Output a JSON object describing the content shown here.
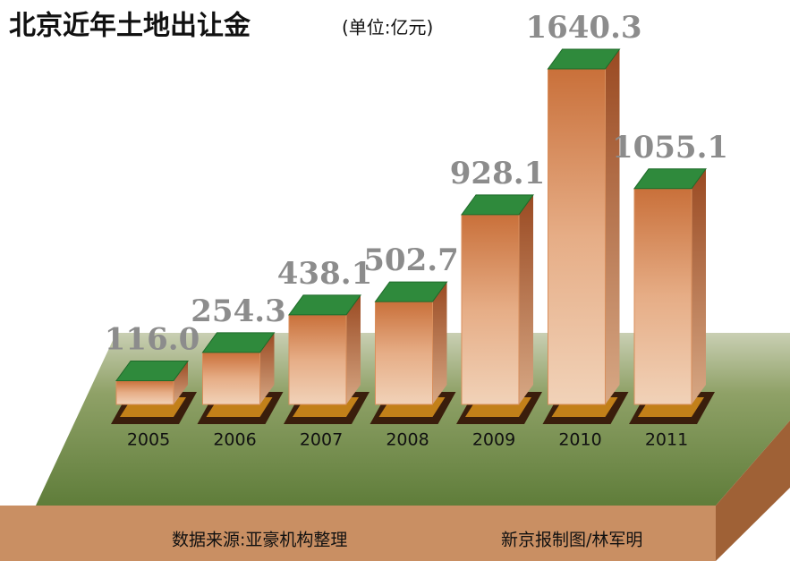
{
  "chart_data": {
    "type": "bar",
    "title": "北京近年土地出让金",
    "subtitle": "(单位:亿元)",
    "categories": [
      "2005",
      "2006",
      "2007",
      "2008",
      "2009",
      "2010",
      "2011"
    ],
    "values": [
      116.0,
      254.3,
      438.1,
      502.7,
      928.1,
      1640.3,
      1055.1
    ],
    "value_labels": [
      "116.0",
      "254.3",
      "438.1",
      "502.7",
      "928.1",
      "1640.3",
      "1055.1"
    ],
    "color": "#d98f5c",
    "source": "数据来源:亚豪机构整理",
    "credit": "新京报制图/林军明"
  }
}
